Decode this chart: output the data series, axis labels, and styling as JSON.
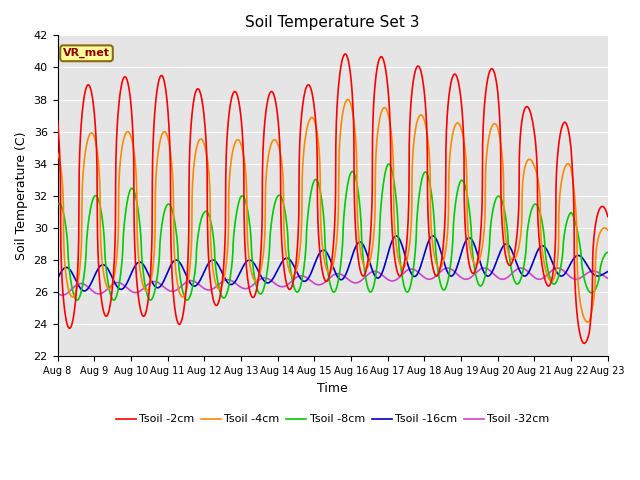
{
  "title": "Soil Temperature Set 3",
  "xlabel": "Time",
  "ylabel": "Soil Temperature (C)",
  "ylim": [
    22,
    42
  ],
  "annotation": "VR_met",
  "background_color": "#e5e5e5",
  "grid_color": "white",
  "series": {
    "Tsoil -2cm": {
      "color": "#ff0000",
      "lw": 1.2
    },
    "Tsoil -4cm": {
      "color": "#ff8800",
      "lw": 1.2
    },
    "Tsoil -8cm": {
      "color": "#00cc00",
      "lw": 1.2
    },
    "Tsoil -16cm": {
      "color": "#0000cc",
      "lw": 1.2
    },
    "Tsoil -32cm": {
      "color": "#cc44cc",
      "lw": 1.2
    }
  },
  "x_tick_labels": [
    "Aug 8",
    "Aug 9",
    "Aug 10",
    "Aug 11",
    "Aug 12",
    "Aug 13",
    "Aug 14",
    "Aug 15",
    "Aug 16",
    "Aug 17",
    "Aug 18",
    "Aug 19",
    "Aug 20",
    "Aug 21",
    "Aug 22",
    "Aug 23"
  ],
  "yticks": [
    22,
    24,
    26,
    28,
    30,
    32,
    34,
    36,
    38,
    40,
    42
  ]
}
